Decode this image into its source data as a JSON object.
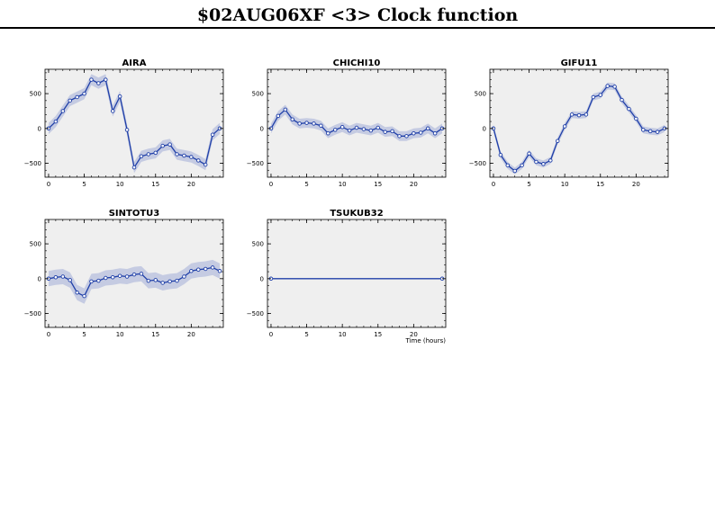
{
  "page": {
    "title": "$02AUG06XF <3>  Clock function"
  },
  "colors": {
    "band": "#c5cbe2",
    "line": "#1f3fa8",
    "panel_bg": "#efefef",
    "marker_fill": "#ffffff"
  },
  "chart_data": [
    {
      "type": "line",
      "title": "AIRA",
      "xlabel": "",
      "ylabel": "",
      "xlim": [
        -0.5,
        24.5
      ],
      "ylim": [
        -700,
        850
      ],
      "xticks": [
        0,
        5,
        10,
        15,
        20
      ],
      "yticks": [
        500,
        0,
        -500
      ],
      "series": [
        {
          "x": [
            0,
            1,
            2,
            3,
            4,
            5,
            6,
            7,
            8,
            9,
            10,
            11,
            12,
            13,
            14,
            15,
            16,
            17,
            18,
            19,
            20,
            21,
            22,
            23,
            24
          ],
          "y": [
            0,
            100,
            250,
            400,
            450,
            500,
            700,
            650,
            700,
            250,
            460,
            -20,
            -560,
            -400,
            -370,
            -350,
            -250,
            -230,
            -370,
            -390,
            -410,
            -460,
            -520,
            -90,
            0
          ],
          "band": 80
        }
      ]
    },
    {
      "type": "line",
      "title": "CHICHI10",
      "xlabel": "",
      "ylabel": "",
      "xlim": [
        -0.5,
        24.5
      ],
      "ylim": [
        -700,
        850
      ],
      "xticks": [
        0,
        5,
        10,
        15,
        20
      ],
      "yticks": [
        500,
        0,
        -500
      ],
      "series": [
        {
          "x": [
            0,
            1,
            2,
            3,
            4,
            5,
            6,
            7,
            8,
            9,
            10,
            11,
            12,
            13,
            14,
            15,
            16,
            17,
            18,
            19,
            20,
            21,
            22,
            23,
            24
          ],
          "y": [
            0,
            180,
            270,
            130,
            70,
            80,
            70,
            40,
            -70,
            -20,
            20,
            -30,
            10,
            -10,
            -30,
            10,
            -50,
            -40,
            -110,
            -110,
            -70,
            -60,
            0,
            -70,
            0
          ],
          "band": 70
        }
      ]
    },
    {
      "type": "line",
      "title": "GIFU11",
      "xlabel": "",
      "ylabel": "",
      "xlim": [
        -0.5,
        24.5
      ],
      "ylim": [
        -700,
        850
      ],
      "xticks": [
        0,
        5,
        10,
        15,
        20
      ],
      "yticks": [
        500,
        0,
        -500
      ],
      "series": [
        {
          "x": [
            0,
            1,
            2,
            3,
            4,
            5,
            6,
            7,
            8,
            9,
            10,
            11,
            12,
            13,
            14,
            15,
            16,
            17,
            18,
            19,
            20,
            21,
            22,
            23,
            24
          ],
          "y": [
            0,
            -380,
            -530,
            -610,
            -530,
            -360,
            -480,
            -510,
            -460,
            -180,
            30,
            200,
            190,
            200,
            450,
            480,
            610,
            600,
            410,
            280,
            140,
            -20,
            -40,
            -50,
            0
          ],
          "band": 50
        }
      ]
    },
    {
      "type": "line",
      "title": "SINTOTU3",
      "xlabel": "",
      "ylabel": "",
      "xlim": [
        -0.5,
        24.5
      ],
      "ylim": [
        -700,
        850
      ],
      "xticks": [
        0,
        5,
        10,
        15,
        20
      ],
      "yticks": [
        500,
        0,
        -500
      ],
      "series": [
        {
          "x": [
            0,
            1,
            2,
            3,
            4,
            5,
            6,
            7,
            8,
            9,
            10,
            11,
            12,
            13,
            14,
            15,
            16,
            17,
            18,
            19,
            20,
            21,
            22,
            23,
            24
          ],
          "y": [
            0,
            20,
            30,
            -20,
            -200,
            -250,
            -40,
            -30,
            10,
            20,
            40,
            30,
            60,
            70,
            -30,
            -20,
            -60,
            -40,
            -30,
            30,
            110,
            130,
            140,
            160,
            110
          ],
          "band": 110
        }
      ]
    },
    {
      "type": "line",
      "title": "TSUKUB32",
      "xlabel": "Time (hours)",
      "ylabel": "",
      "xlim": [
        -0.5,
        24.5
      ],
      "ylim": [
        -700,
        850
      ],
      "xticks": [
        0,
        5,
        10,
        15,
        20
      ],
      "yticks": [
        500,
        0,
        -500
      ],
      "series": [
        {
          "x": [
            0,
            24
          ],
          "y": [
            0,
            0
          ],
          "band": 0
        }
      ]
    }
  ]
}
